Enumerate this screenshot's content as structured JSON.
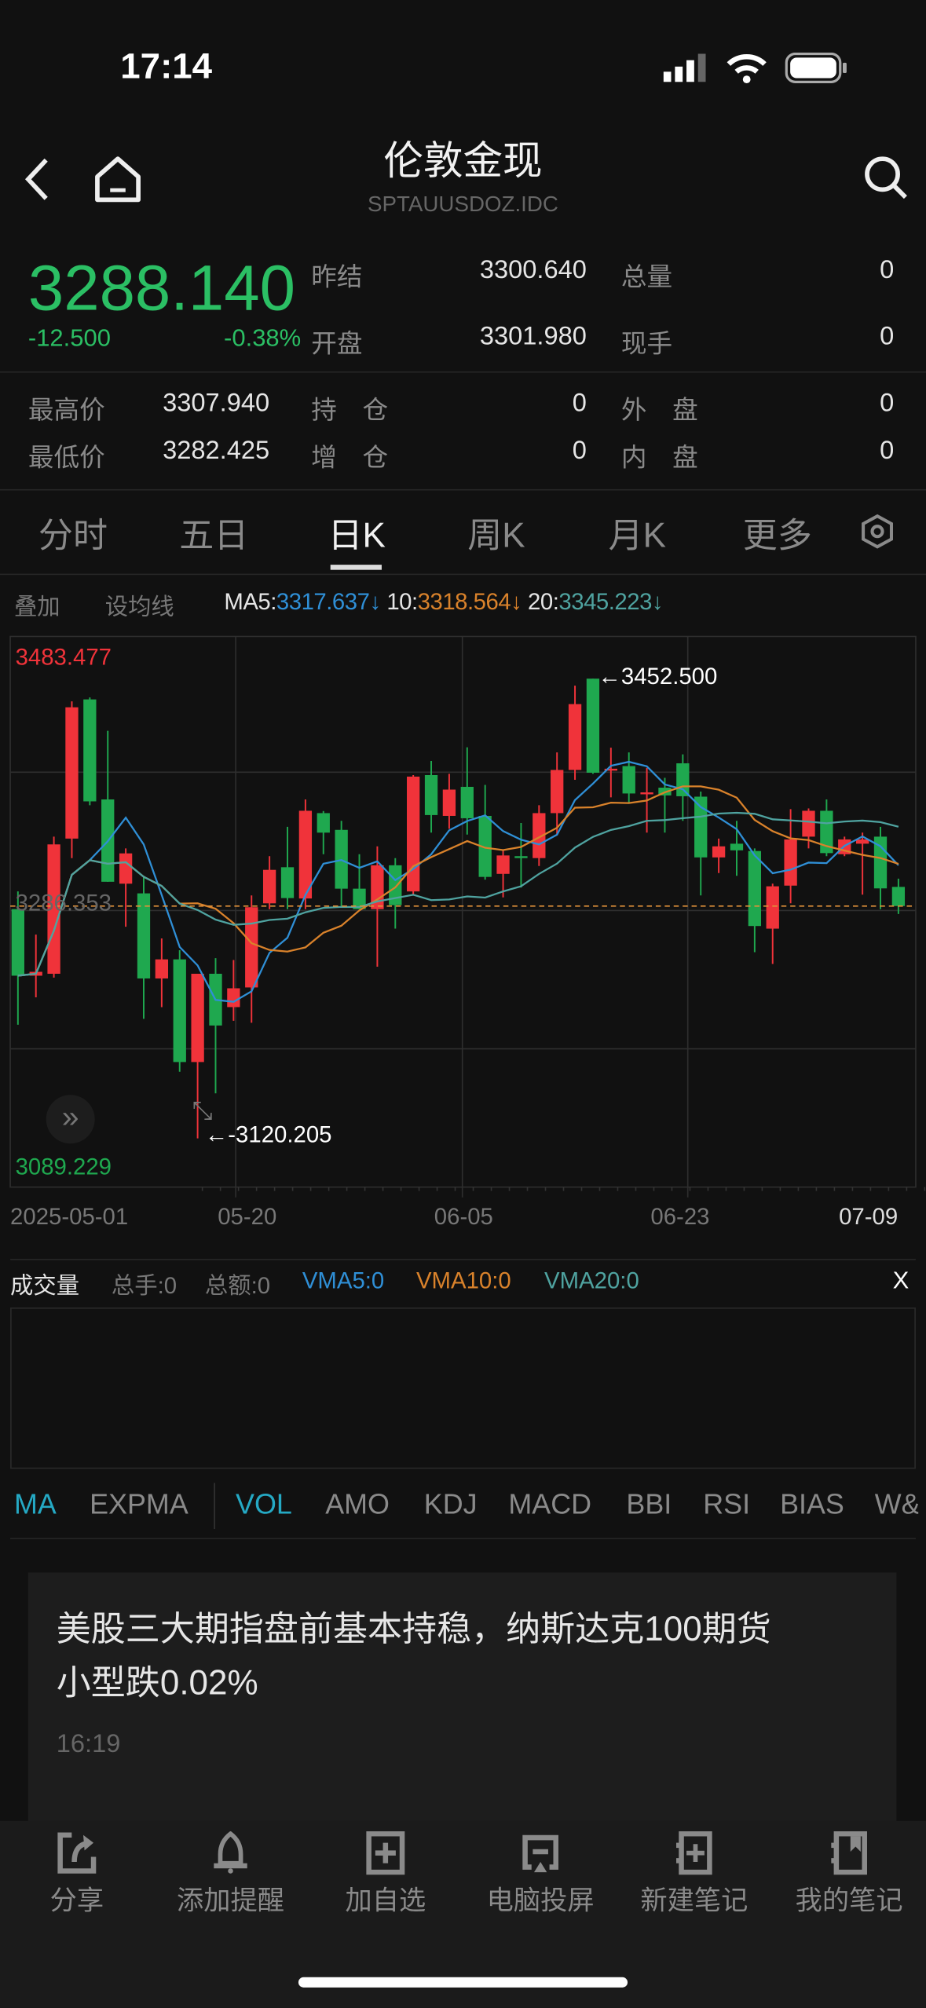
{
  "status_bar": {
    "time": "17:14"
  },
  "header": {
    "title": "伦敦金现",
    "code": "SPTAUUSDOZ.IDC"
  },
  "quote": {
    "price": "3288.140",
    "change": "-12.500",
    "change_pct": "-0.38%",
    "price_color": "#2bbf64",
    "rows": [
      {
        "label": "昨结",
        "value": "3300.640",
        "label2": "总量",
        "value2": "0"
      },
      {
        "label": "开盘",
        "value": "3301.980",
        "label2": "现手",
        "value2": "0"
      }
    ],
    "stats": [
      {
        "label": "最高价",
        "value": "3307.940",
        "label2": "持　仓",
        "value2": "0",
        "label3": "外　盘",
        "value3": "0"
      },
      {
        "label": "最低价",
        "value": "3282.425",
        "label2": "增　仓",
        "value2": "0",
        "label3": "内　盘",
        "value3": "0"
      }
    ]
  },
  "period_tabs": [
    {
      "label": "分时"
    },
    {
      "label": "五日"
    },
    {
      "label": "日K",
      "active": true
    },
    {
      "label": "周K"
    },
    {
      "label": "月K"
    },
    {
      "label": "更多"
    }
  ],
  "ma_bar": {
    "overlay": "叠加",
    "set_ma": "设均线",
    "ma5_label": "MA5:",
    "ma5": "3317.637↓",
    "ma10_label": "10:",
    "ma10": "3318.564↓",
    "ma20_label": "20:",
    "ma20": "3345.223↓",
    "colors": {
      "ma5": "#2f8fd6",
      "ma10": "#d9822b",
      "ma20": "#4fa3a0"
    }
  },
  "chart_data": {
    "type": "candlestick",
    "up_color": "#f0333a",
    "down_color": "#1fa84f",
    "ylim": [
      3085,
      3483
    ],
    "max_label": "3483.477",
    "min_label": "3089.229",
    "last_label": "3286.353",
    "high_marker": "3452.500",
    "low_marker": "3120.205",
    "x_ticks": [
      "2025-05-01",
      "05-20",
      "06-05",
      "06-23",
      "07-09"
    ],
    "ma_periods": [
      5,
      10,
      20
    ],
    "ohlc": [
      [
        3285.9,
        3298.7,
        3202.4,
        3237.8
      ],
      [
        3237.8,
        3267.5,
        3222.2,
        3240.6
      ],
      [
        3239.2,
        3338.3,
        3236.4,
        3332.7
      ],
      [
        3336.9,
        3436.1,
        3322.8,
        3431.8
      ],
      [
        3437.5,
        3438.9,
        3361.0,
        3363.8
      ],
      [
        3365.2,
        3414.8,
        3305.7,
        3305.7
      ],
      [
        3304.3,
        3329.8,
        3273.2,
        3326.2
      ],
      [
        3297.3,
        3310.0,
        3206.6,
        3235.8
      ],
      [
        3235.8,
        3264.7,
        3215.1,
        3249.6
      ],
      [
        3249.6,
        3256.2,
        3168.4,
        3175.4
      ],
      [
        3175.4,
        3239.2,
        3120.2,
        3239.2
      ],
      [
        3239.2,
        3250.5,
        3152.8,
        3201.8
      ],
      [
        3215.1,
        3249.1,
        3205.2,
        3228.7
      ],
      [
        3229.3,
        3295.8,
        3203.8,
        3287.3
      ],
      [
        3290.1,
        3324.2,
        3285.9,
        3314.3
      ],
      [
        3316.2,
        3345.4,
        3285.9,
        3293.9
      ],
      [
        3293.6,
        3365.2,
        3285.9,
        3357.0
      ],
      [
        3355.3,
        3356.8,
        3325.6,
        3341.2
      ],
      [
        3343.2,
        3349.7,
        3287.3,
        3300.7
      ],
      [
        3300.7,
        3325.6,
        3285.9,
        3285.9
      ],
      [
        3285.9,
        3331.3,
        3244.3,
        3317.6
      ],
      [
        3317.6,
        3322.8,
        3271.8,
        3288.8
      ],
      [
        3298.7,
        3382.8,
        3295.8,
        3381.7
      ],
      [
        3382.8,
        3393.0,
        3341.2,
        3353.9
      ],
      [
        3353.3,
        3383.7,
        3344.0,
        3372.3
      ],
      [
        3374.3,
        3402.9,
        3339.8,
        3351.6
      ],
      [
        3353.3,
        3375.7,
        3307.2,
        3309.2
      ],
      [
        3311.4,
        3328.4,
        3294.4,
        3324.7
      ],
      [
        3324.2,
        3348.2,
        3301.5,
        3322.8
      ],
      [
        3322.8,
        3361.0,
        3317.1,
        3355.3
      ],
      [
        3355.3,
        3399.2,
        3339.8,
        3386.5
      ],
      [
        3386.5,
        3447.4,
        3379.4,
        3434.1
      ],
      [
        3452.5,
        3452.5,
        3383.7,
        3384.5
      ],
      [
        3386.5,
        3402.6,
        3366.7,
        3387.4
      ],
      [
        3389.3,
        3399.2,
        3362.4,
        3369.5
      ],
      [
        3369.5,
        3388.0,
        3341.2,
        3370.3
      ],
      [
        3373.7,
        3380.8,
        3341.2,
        3368.1
      ],
      [
        3391.3,
        3397.8,
        3349.7,
        3367.5
      ],
      [
        3367.2,
        3370.9,
        3295.8,
        3323.3
      ],
      [
        3323.3,
        3336.9,
        3312.0,
        3331.3
      ],
      [
        3333.2,
        3349.7,
        3310.0,
        3328.4
      ],
      [
        3327.9,
        3329.8,
        3254.8,
        3273.7
      ],
      [
        3271.8,
        3304.3,
        3246.3,
        3302.4
      ],
      [
        3302.9,
        3358.2,
        3290.1,
        3336.3
      ],
      [
        3338.3,
        3358.7,
        3329.8,
        3357.0
      ],
      [
        3357.0,
        3365.2,
        3324.2,
        3326.4
      ],
      [
        3325.6,
        3338.3,
        3324.2,
        3336.3
      ],
      [
        3333.2,
        3341.2,
        3296.4,
        3336.3
      ],
      [
        3338.3,
        3345.4,
        3285.9,
        3300.9
      ],
      [
        3301.98,
        3307.94,
        3282.425,
        3288.14
      ]
    ]
  },
  "volume": {
    "title": "成交量",
    "total_hands": "总手:0",
    "total_amount": "总额:0",
    "vma5": "VMA5:0",
    "vma10": "VMA10:0",
    "vma20": "VMA20:0",
    "close": "X"
  },
  "indicators": [
    {
      "label": "MA",
      "active": true
    },
    {
      "label": "EXPMA"
    },
    {
      "label": "VOL",
      "active": true
    },
    {
      "label": "AMO"
    },
    {
      "label": "KDJ"
    },
    {
      "label": "MACD"
    },
    {
      "label": "BBI"
    },
    {
      "label": "RSI"
    },
    {
      "label": "BIAS"
    },
    {
      "label": "W&"
    }
  ],
  "news": {
    "title_line1": "美股三大期指盘前基本持稳，纳斯达克100期货",
    "title_line2": "小型跌0.02%",
    "time": "16:19"
  },
  "bottom_bar": [
    {
      "label": "分享",
      "icon": "share-icon"
    },
    {
      "label": "添加提醒",
      "icon": "bell-icon"
    },
    {
      "label": "加自选",
      "icon": "add-watchlist-icon"
    },
    {
      "label": "电脑投屏",
      "icon": "cast-icon"
    },
    {
      "label": "新建笔记",
      "icon": "new-note-icon"
    },
    {
      "label": "我的笔记",
      "icon": "notebook-icon"
    }
  ]
}
